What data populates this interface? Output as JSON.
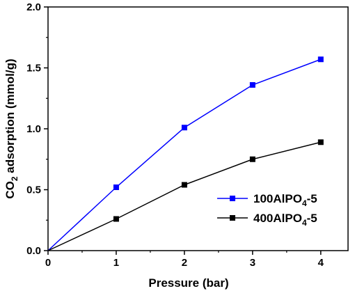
{
  "chart_data": {
    "type": "line",
    "xlabel": "Pressure (bar)",
    "ylabel": {
      "prefix": "CO",
      "sub": "2",
      "rest": " adsorption (mmol/g)"
    },
    "xlim": [
      0,
      4.4
    ],
    "ylim": [
      0,
      2.0
    ],
    "x_ticks": [
      0,
      1,
      2,
      3,
      4
    ],
    "y_ticks": [
      0.0,
      0.5,
      1.0,
      1.5,
      2.0
    ],
    "x_tick_labels": [
      "0",
      "1",
      "2",
      "3",
      "4"
    ],
    "y_tick_labels": [
      "0.0",
      "0.5",
      "1.0",
      "1.5",
      "2.0"
    ],
    "legend_position": "lower-right",
    "series": [
      {
        "name": {
          "prefix": "100AlPO",
          "sub": "4",
          "rest": "-5"
        },
        "color": "#0000ff",
        "x": [
          0,
          1,
          2,
          3,
          4
        ],
        "y": [
          0,
          0.52,
          1.01,
          1.36,
          1.57
        ]
      },
      {
        "name": {
          "prefix": "400AlPO",
          "sub": "4",
          "rest": "-5"
        },
        "color": "#000000",
        "x": [
          0,
          1,
          2,
          3,
          4
        ],
        "y": [
          0,
          0.26,
          0.54,
          0.75,
          0.89
        ]
      }
    ]
  }
}
